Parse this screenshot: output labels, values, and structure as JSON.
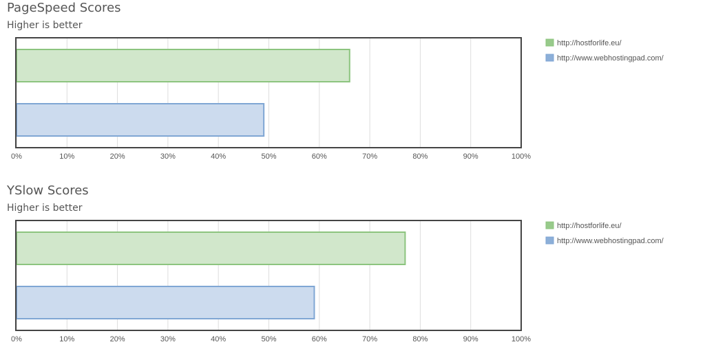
{
  "chart_data": [
    {
      "type": "bar",
      "orientation": "horizontal",
      "title": "PageSpeed Scores",
      "subtitle": "Higher is better",
      "series": [
        {
          "name": "http://hostforlife.eu/",
          "color": "#8cc47e",
          "values": [
            66
          ]
        },
        {
          "name": "http://www.webhostingpad.com/",
          "color": "#7fa6d4",
          "values": [
            49
          ]
        }
      ],
      "xlim": [
        0,
        100
      ],
      "xticks": [
        {
          "value": 0,
          "label": "0%"
        },
        {
          "value": 10,
          "label": "10%"
        },
        {
          "value": 20,
          "label": "20%"
        },
        {
          "value": 30,
          "label": "30%"
        },
        {
          "value": 40,
          "label": "40%"
        },
        {
          "value": 50,
          "label": "50%"
        },
        {
          "value": 60,
          "label": "60%"
        },
        {
          "value": 70,
          "label": "70%"
        },
        {
          "value": 80,
          "label": "80%"
        },
        {
          "value": 90,
          "label": "90%"
        },
        {
          "value": 100,
          "label": "100%"
        }
      ],
      "grid": true,
      "legend": "right"
    },
    {
      "type": "bar",
      "orientation": "horizontal",
      "title": "YSlow Scores",
      "subtitle": "Higher is better",
      "series": [
        {
          "name": "http://hostforlife.eu/",
          "color": "#8cc47e",
          "values": [
            77
          ]
        },
        {
          "name": "http://www.webhostingpad.com/",
          "color": "#7fa6d4",
          "values": [
            59
          ]
        }
      ],
      "xlim": [
        0,
        100
      ],
      "xticks": [
        {
          "value": 0,
          "label": "0%"
        },
        {
          "value": 10,
          "label": "10%"
        },
        {
          "value": 20,
          "label": "20%"
        },
        {
          "value": 30,
          "label": "30%"
        },
        {
          "value": 40,
          "label": "40%"
        },
        {
          "value": 50,
          "label": "50%"
        },
        {
          "value": 60,
          "label": "60%"
        },
        {
          "value": 70,
          "label": "70%"
        },
        {
          "value": 80,
          "label": "80%"
        },
        {
          "value": 90,
          "label": "90%"
        },
        {
          "value": 100,
          "label": "100%"
        }
      ],
      "grid": true,
      "legend": "right"
    }
  ]
}
